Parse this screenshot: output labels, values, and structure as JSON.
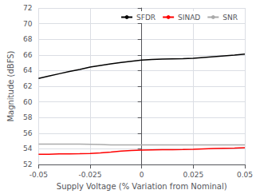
{
  "chart_data": {
    "type": "line",
    "xlabel": "Supply Voltage (% Variation from Nominal)",
    "ylabel": "Magnitude (dBFS)",
    "x": [
      -0.05,
      -0.045,
      -0.04,
      -0.035,
      -0.03,
      -0.025,
      -0.02,
      -0.015,
      -0.01,
      -0.005,
      0,
      0.005,
      0.01,
      0.015,
      0.02,
      0.025,
      0.03,
      0.035,
      0.04,
      0.045,
      0.05
    ],
    "series": [
      {
        "name": "SFDR",
        "color": "#000000",
        "values": [
          63.0,
          63.3,
          63.6,
          63.9,
          64.15,
          64.45,
          64.65,
          64.85,
          65.05,
          65.2,
          65.35,
          65.42,
          65.48,
          65.5,
          65.52,
          65.58,
          65.68,
          65.78,
          65.88,
          65.98,
          66.1
        ]
      },
      {
        "name": "SINAD",
        "color": "#ff0000",
        "values": [
          53.3,
          53.3,
          53.35,
          53.35,
          53.38,
          53.42,
          53.5,
          53.6,
          53.72,
          53.8,
          53.85,
          53.88,
          53.9,
          53.9,
          53.92,
          53.95,
          54.0,
          54.05,
          54.08,
          54.1,
          54.15
        ]
      },
      {
        "name": "SNR",
        "color": "#aaaaaa",
        "values": [
          54.6,
          54.62,
          54.6,
          54.62,
          54.6,
          54.58,
          54.55,
          54.52,
          54.52,
          54.5,
          54.5,
          54.5,
          54.5,
          54.5,
          54.5,
          54.5,
          54.5,
          54.5,
          54.5,
          54.5,
          54.5
        ]
      }
    ],
    "xlim": [
      -0.05,
      0.05
    ],
    "ylim": [
      52,
      72
    ],
    "xticks": [
      -0.05,
      -0.025,
      0,
      0.025,
      0.05
    ],
    "yticks": [
      52,
      54,
      56,
      58,
      60,
      62,
      64,
      66,
      68,
      70,
      72
    ],
    "grid": true,
    "legend": "upper right"
  }
}
